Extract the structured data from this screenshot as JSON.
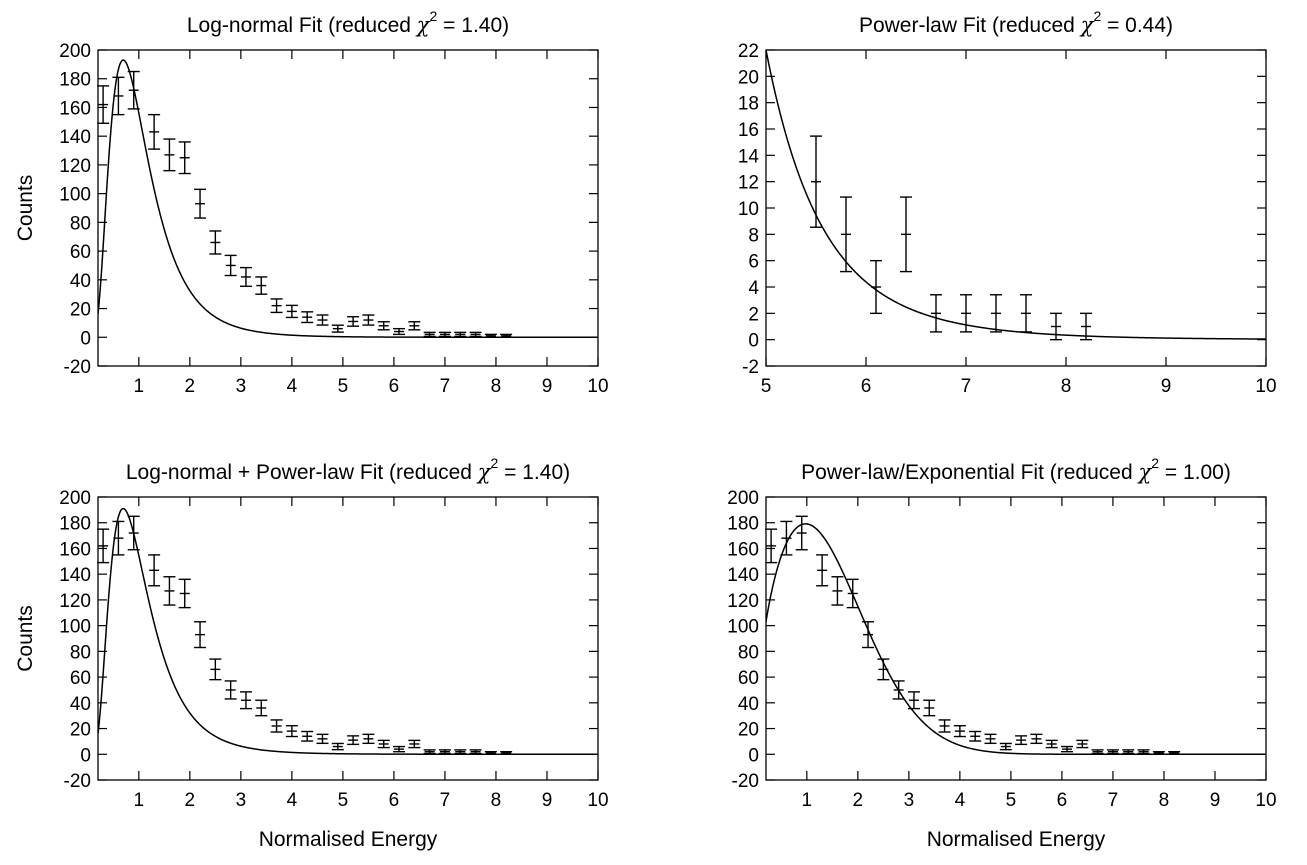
{
  "chart_data": [
    {
      "type": "scatter",
      "title_main": "Log-normal Fit (reduced ",
      "title_chi": "χ",
      "title_sup": "2",
      "title_tail": " = 1.40)",
      "xlabel": "",
      "ylabel": "Counts",
      "xlim": [
        0.2,
        10
      ],
      "ylim": [
        -20,
        200
      ],
      "xticks": [
        1,
        2,
        3,
        4,
        5,
        6,
        7,
        8,
        9,
        10
      ],
      "yticks": [
        -20,
        0,
        20,
        40,
        60,
        80,
        100,
        120,
        140,
        160,
        180,
        200
      ],
      "points": {
        "x": [
          0.3,
          0.6,
          0.9,
          1.3,
          1.6,
          1.9,
          2.2,
          2.5,
          2.8,
          3.1,
          3.4,
          3.7,
          4.0,
          4.3,
          4.6,
          4.9,
          5.2,
          5.5,
          5.8,
          6.1,
          6.4,
          6.7,
          7.0,
          7.3,
          7.6,
          7.9,
          8.2
        ],
        "y": [
          162,
          168,
          172,
          143,
          127,
          125,
          93,
          66,
          50,
          42,
          36,
          22,
          18,
          14,
          12,
          6,
          11,
          12,
          8,
          4,
          8,
          2,
          2,
          2,
          2,
          1,
          1
        ],
        "err": [
          13,
          13,
          13,
          12,
          11,
          11,
          10,
          8,
          7,
          6.5,
          6,
          4.7,
          4.2,
          3.7,
          3.5,
          2.4,
          3.3,
          3.5,
          2.8,
          2,
          2.8,
          1.4,
          1.4,
          1.4,
          1.4,
          1,
          1
        ]
      },
      "fit": {
        "model": "log-normal",
        "A": 193,
        "mu": -0.0513,
        "sigma": 0.56,
        "xpeak": 0.7
      }
    },
    {
      "type": "scatter",
      "title_main": "Power-law Fit (reduced ",
      "title_chi": "χ",
      "title_sup": "2",
      "title_tail": " = 0.44)",
      "xlabel": "",
      "ylabel": "",
      "xlim": [
        5,
        10
      ],
      "ylim": [
        -2,
        22
      ],
      "xticks": [
        5,
        6,
        7,
        8,
        9,
        10
      ],
      "yticks": [
        -2,
        0,
        2,
        4,
        6,
        8,
        10,
        12,
        14,
        16,
        18,
        20,
        22
      ],
      "points": {
        "x": [
          5.5,
          5.8,
          6.1,
          6.4,
          6.7,
          7.0,
          7.3,
          7.6,
          7.9,
          8.2
        ],
        "y": [
          12,
          8,
          4,
          8,
          2,
          2,
          2,
          2,
          1,
          1
        ],
        "err": [
          3.46,
          2.83,
          2,
          2.83,
          1.41,
          1.41,
          1.41,
          1.41,
          1,
          1
        ]
      },
      "fit": {
        "model": "power-law",
        "A": 22,
        "x0": 5,
        "alpha": 8.85
      }
    },
    {
      "type": "scatter",
      "title_main": "Log-normal + Power-law Fit (reduced ",
      "title_chi": "χ",
      "title_sup": "2",
      "title_tail": " = 1.40)",
      "xlabel": "Normalised Energy",
      "ylabel": "Counts",
      "xlim": [
        0.2,
        10
      ],
      "ylim": [
        -20,
        200
      ],
      "xticks": [
        1,
        2,
        3,
        4,
        5,
        6,
        7,
        8,
        9,
        10
      ],
      "yticks": [
        -20,
        0,
        20,
        40,
        60,
        80,
        100,
        120,
        140,
        160,
        180,
        200
      ],
      "points": {
        "x": [
          0.3,
          0.6,
          0.9,
          1.3,
          1.6,
          1.9,
          2.2,
          2.5,
          2.8,
          3.1,
          3.4,
          3.7,
          4.0,
          4.3,
          4.6,
          4.9,
          5.2,
          5.5,
          5.8,
          6.1,
          6.4,
          6.7,
          7.0,
          7.3,
          7.6,
          7.9,
          8.2
        ],
        "y": [
          162,
          168,
          172,
          143,
          127,
          125,
          93,
          66,
          50,
          42,
          36,
          22,
          18,
          14,
          12,
          6,
          11,
          12,
          8,
          4,
          8,
          2,
          2,
          2,
          2,
          1,
          1
        ],
        "err": [
          13,
          13,
          13,
          12,
          11,
          11,
          10,
          8,
          7,
          6.5,
          6,
          4.7,
          4.2,
          3.7,
          3.5,
          2.4,
          3.3,
          3.5,
          2.8,
          2,
          2.8,
          1.4,
          1.4,
          1.4,
          1.4,
          1,
          1
        ]
      },
      "fit": {
        "model": "log-normal",
        "A": 191,
        "mu": -0.0513,
        "sigma": 0.56,
        "xpeak": 0.7
      }
    },
    {
      "type": "scatter",
      "title_main": "Power-law/Exponential Fit (reduced ",
      "title_chi": "χ",
      "title_sup": "2",
      "title_tail": " = 1.00)",
      "xlabel": "Normalised Energy",
      "ylabel": "",
      "xlim": [
        0.2,
        10
      ],
      "ylim": [
        -20,
        200
      ],
      "xticks": [
        1,
        2,
        3,
        4,
        5,
        6,
        7,
        8,
        9,
        10
      ],
      "yticks": [
        -20,
        0,
        20,
        40,
        60,
        80,
        100,
        120,
        140,
        160,
        180,
        200
      ],
      "points": {
        "x": [
          0.3,
          0.6,
          0.9,
          1.3,
          1.6,
          1.9,
          2.2,
          2.5,
          2.8,
          3.1,
          3.4,
          3.7,
          4.0,
          4.3,
          4.6,
          4.9,
          5.2,
          5.5,
          5.8,
          6.1,
          6.4,
          6.7,
          7.0,
          7.3,
          7.6,
          7.9,
          8.2
        ],
        "y": [
          162,
          168,
          172,
          143,
          127,
          125,
          93,
          66,
          50,
          42,
          36,
          22,
          18,
          14,
          12,
          6,
          11,
          12,
          8,
          4,
          8,
          2,
          2,
          2,
          2,
          1,
          1
        ],
        "err": [
          13,
          13,
          13,
          12,
          11,
          11,
          10,
          8,
          7,
          6.5,
          6,
          4.7,
          4.2,
          3.7,
          3.5,
          2.4,
          3.3,
          3.5,
          2.8,
          2,
          2.8,
          1.4,
          1.4,
          1.4,
          1.4,
          1,
          1
        ]
      },
      "fit": {
        "model": "powerlaw-exponential",
        "A": 174,
        "gamma": 0.5,
        "k": 1.95,
        "xpeak": 0.75
      }
    }
  ]
}
